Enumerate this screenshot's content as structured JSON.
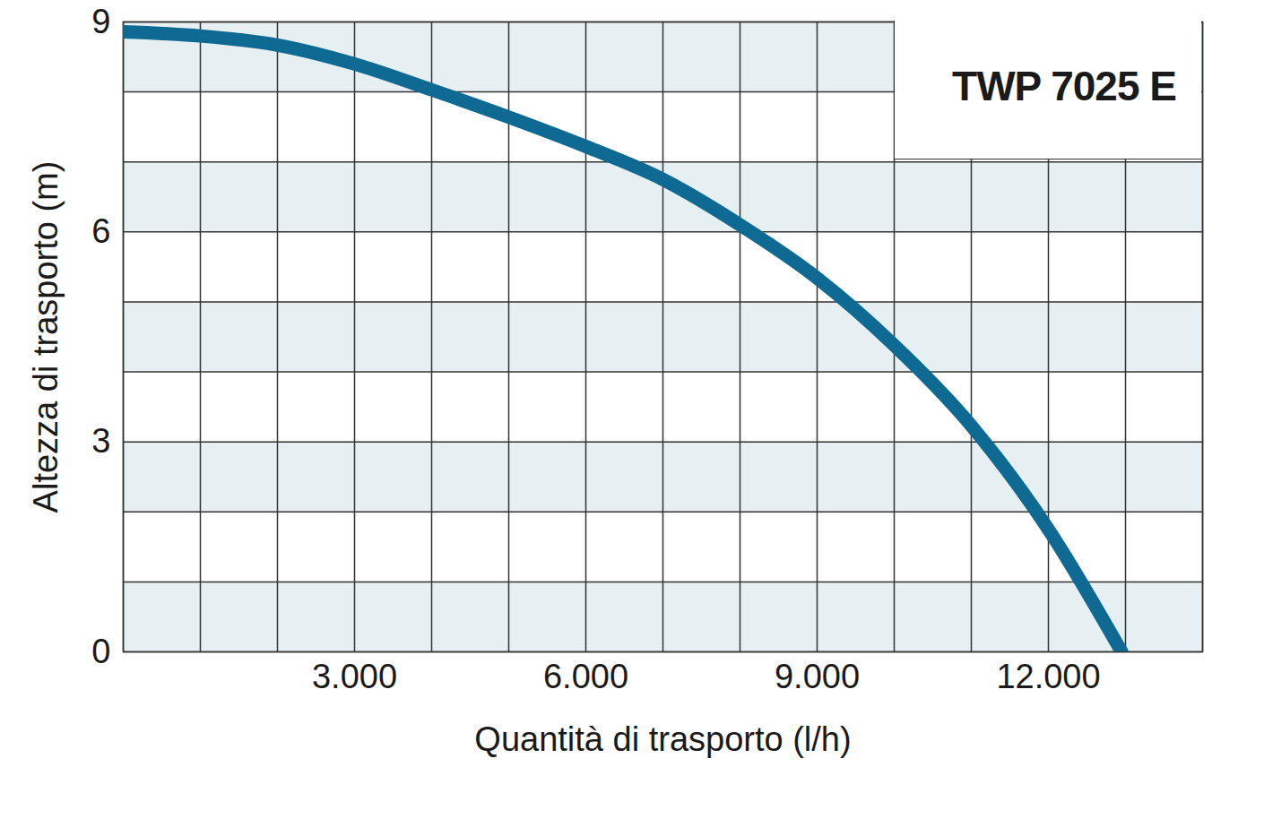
{
  "chart_data": {
    "type": "line",
    "title": "TWP 7025 E",
    "xlabel": "Quantità di trasporto (l/h)",
    "ylabel": "Altezza di trasporto (m)",
    "x": [
      0,
      1000,
      2000,
      3000,
      4000,
      5000,
      6000,
      7000,
      8000,
      9000,
      10000,
      11000,
      12000,
      12950
    ],
    "values": [
      8.86,
      8.8,
      8.67,
      8.4,
      8.03,
      7.64,
      7.22,
      6.75,
      6.1,
      5.34,
      4.38,
      3.23,
      1.75,
      0
    ],
    "color": "#0f6a93",
    "xlim": [
      0,
      14000
    ],
    "xticks": [
      {
        "value": 3000,
        "label": "3.000"
      },
      {
        "value": 6000,
        "label": "6.000"
      },
      {
        "value": 9000,
        "label": "9.000"
      },
      {
        "value": 12000,
        "label": "12.000"
      }
    ],
    "ylim": [
      0,
      9
    ],
    "yticks": [
      0,
      3,
      6,
      9
    ],
    "grid": true
  }
}
